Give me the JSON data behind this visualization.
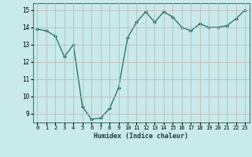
{
  "x": [
    0,
    1,
    2,
    3,
    4,
    5,
    6,
    7,
    8,
    9,
    10,
    11,
    12,
    13,
    14,
    15,
    16,
    17,
    18,
    19,
    20,
    21,
    22,
    23
  ],
  "y": [
    13.9,
    13.8,
    13.5,
    12.3,
    13.0,
    9.4,
    8.7,
    8.75,
    9.3,
    10.5,
    13.4,
    14.3,
    14.9,
    14.3,
    14.9,
    14.6,
    14.0,
    13.8,
    14.2,
    14.0,
    14.0,
    14.1,
    14.5,
    15.0
  ],
  "line_color": "#1e6b5e",
  "bg_color": "#c8eaea",
  "grid_color_major": "#c0b8b8",
  "xlabel": "Humidex (Indice chaleur)",
  "ylim": [
    8.5,
    15.4
  ],
  "xlim": [
    -0.5,
    23.5
  ],
  "yticks": [
    9,
    10,
    11,
    12,
    13,
    14,
    15
  ],
  "xticks": [
    0,
    1,
    2,
    3,
    4,
    5,
    6,
    7,
    8,
    9,
    10,
    11,
    12,
    13,
    14,
    15,
    16,
    17,
    18,
    19,
    20,
    21,
    22,
    23
  ]
}
